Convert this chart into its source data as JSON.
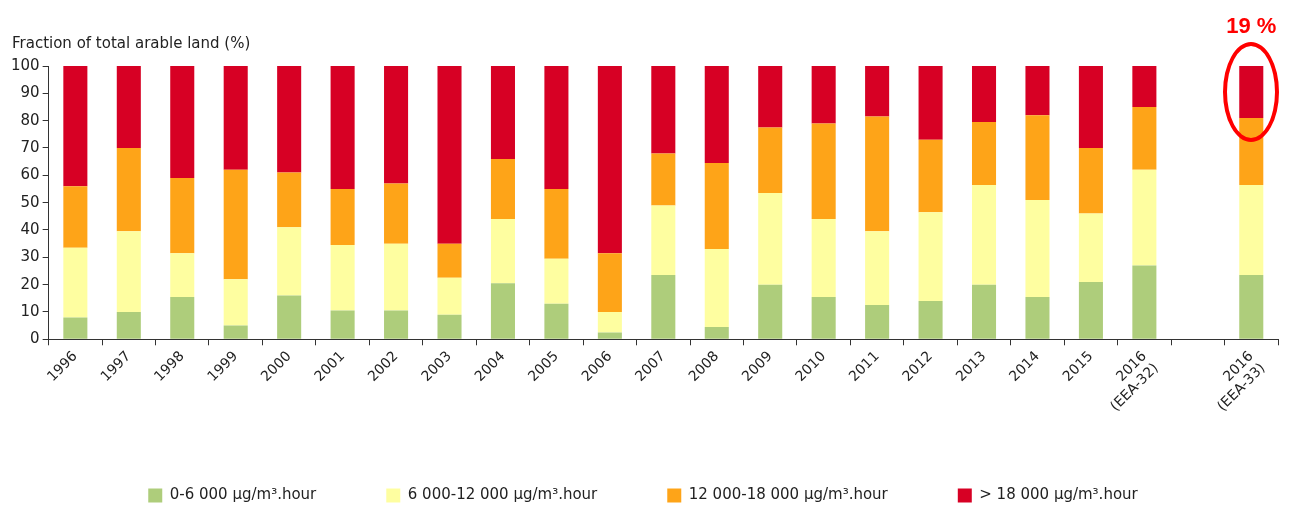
{
  "chart_data": {
    "type": "bar",
    "stacked": true,
    "ylabel": "Fraction of total arable land (%)",
    "categories": [
      "1996",
      "1997",
      "1998",
      "1999",
      "2000",
      "2001",
      "2002",
      "2003",
      "2004",
      "2005",
      "2006",
      "2007",
      "2008",
      "2009",
      "2010",
      "2011",
      "2012",
      "2013",
      "2014",
      "2015",
      "2016\n(EEA-32)",
      null,
      "2016\n(EEA-33)"
    ],
    "series": [
      {
        "name": "0-6 000 µg/m³.hour",
        "color": "#aecd7b",
        "values": [
          8,
          10,
          15.5,
          5,
          16,
          10.5,
          10.5,
          9,
          20.5,
          13,
          2.5,
          23.5,
          4.5,
          20,
          15.5,
          12.5,
          14,
          20,
          15.5,
          21,
          27,
          null,
          23.5
        ]
      },
      {
        "name": "6 000-12 000 µg/m³.hour",
        "color": "#fefea0",
        "values": [
          25.5,
          29.5,
          16,
          17,
          25,
          24,
          24.5,
          13.5,
          23.5,
          16.5,
          7.5,
          25.5,
          28.5,
          33.5,
          28.5,
          27,
          32.5,
          36.5,
          35.5,
          25,
          35,
          null,
          33
        ]
      },
      {
        "name": "12 000-18 000 µg/m³.hour",
        "color": "#fea418",
        "values": [
          22.5,
          30.5,
          27.5,
          40,
          20,
          20.5,
          22,
          12.5,
          22,
          25.5,
          21.5,
          19,
          31.5,
          24,
          35,
          42,
          26.5,
          23,
          31,
          24,
          23,
          null,
          24.5
        ]
      },
      {
        "name": "> 18 000 µg/m³.hour",
        "color": "#d70024",
        "values": [
          44,
          30,
          41,
          38,
          39,
          45,
          43,
          65,
          34,
          45,
          68.5,
          32,
          35.5,
          22.5,
          21,
          18.5,
          27,
          20.5,
          18,
          30,
          15,
          null,
          19
        ]
      }
    ],
    "ylim": [
      0,
      100
    ],
    "yticks": [
      0,
      10,
      20,
      30,
      40,
      50,
      60,
      70,
      80,
      90,
      100
    ],
    "grid": false,
    "legend": "bottom",
    "annotations": [
      {
        "text": "19 %",
        "x": "2016\n(EEA-33)",
        "y": 100
      }
    ]
  }
}
